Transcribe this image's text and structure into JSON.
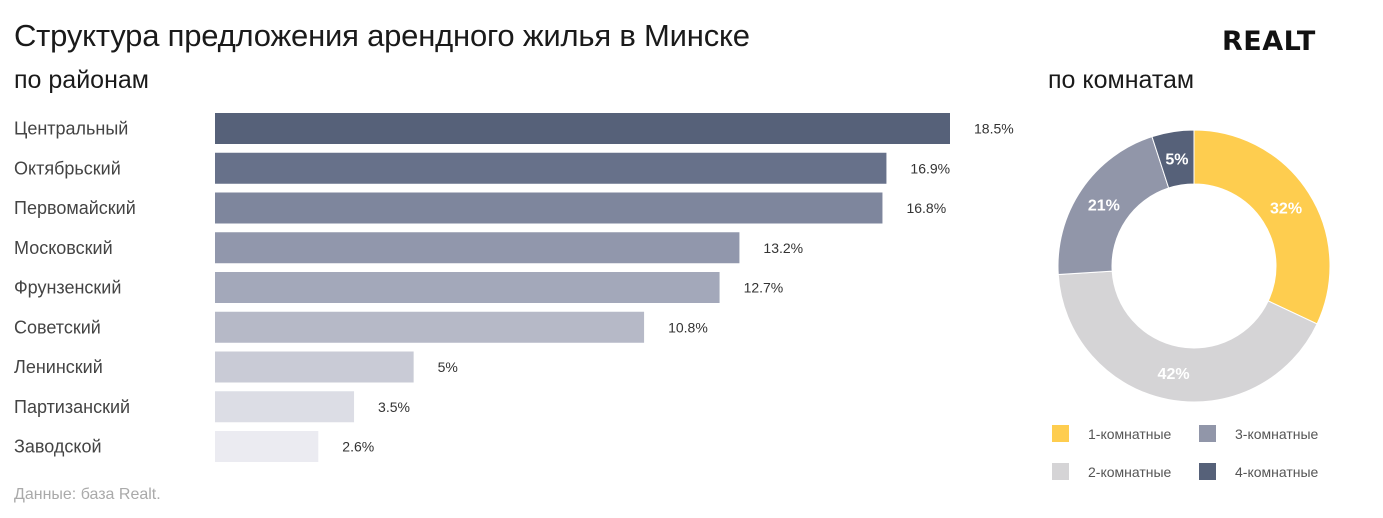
{
  "header": {
    "title": "Структура предложения арендного жилья в Минске",
    "logo": "REALT",
    "source": "Данные: база Realt."
  },
  "chart_data": [
    {
      "type": "bar",
      "orientation": "horizontal",
      "title": "по районам",
      "categories": [
        "Центральный",
        "Октябрьский",
        "Первомайский",
        "Московский",
        "Фрунзенский",
        "Советский",
        "Ленинский",
        "Партизанский",
        "Заводской"
      ],
      "values": [
        18.5,
        16.9,
        16.8,
        13.2,
        12.7,
        10.8,
        5,
        3.5,
        2.6
      ],
      "value_labels": [
        "18.5%",
        "16.9%",
        "16.8%",
        "13.2%",
        "12.7%",
        "10.8%",
        "5%",
        "3.5%",
        "2.6%"
      ],
      "colors": [
        "#566179",
        "#67718a",
        "#7e869d",
        "#9197ac",
        "#a3a8ba",
        "#b6b9c7",
        "#c9cbd6",
        "#dcdde5",
        "#ebebf1"
      ],
      "xlim": [
        0,
        18.5
      ],
      "grid": false
    },
    {
      "type": "pie",
      "variant": "donut",
      "title": "по комнатам",
      "slices": [
        {
          "name": "1-комнатные",
          "value": 32,
          "label": "32%",
          "color": "#fecd4f"
        },
        {
          "name": "2-комнатные",
          "value": 42,
          "label": "42%",
          "color": "#d5d4d6"
        },
        {
          "name": "3-комнатные",
          "value": 21,
          "label": "21%",
          "color": "#9196a9"
        },
        {
          "name": "4-комнатные",
          "value": 5,
          "label": "5%",
          "color": "#566179"
        }
      ],
      "legend": {
        "position": "bottom",
        "order": [
          "1-комнатные",
          "3-комнатные",
          "2-комнатные",
          "4-комнатные"
        ]
      }
    }
  ]
}
